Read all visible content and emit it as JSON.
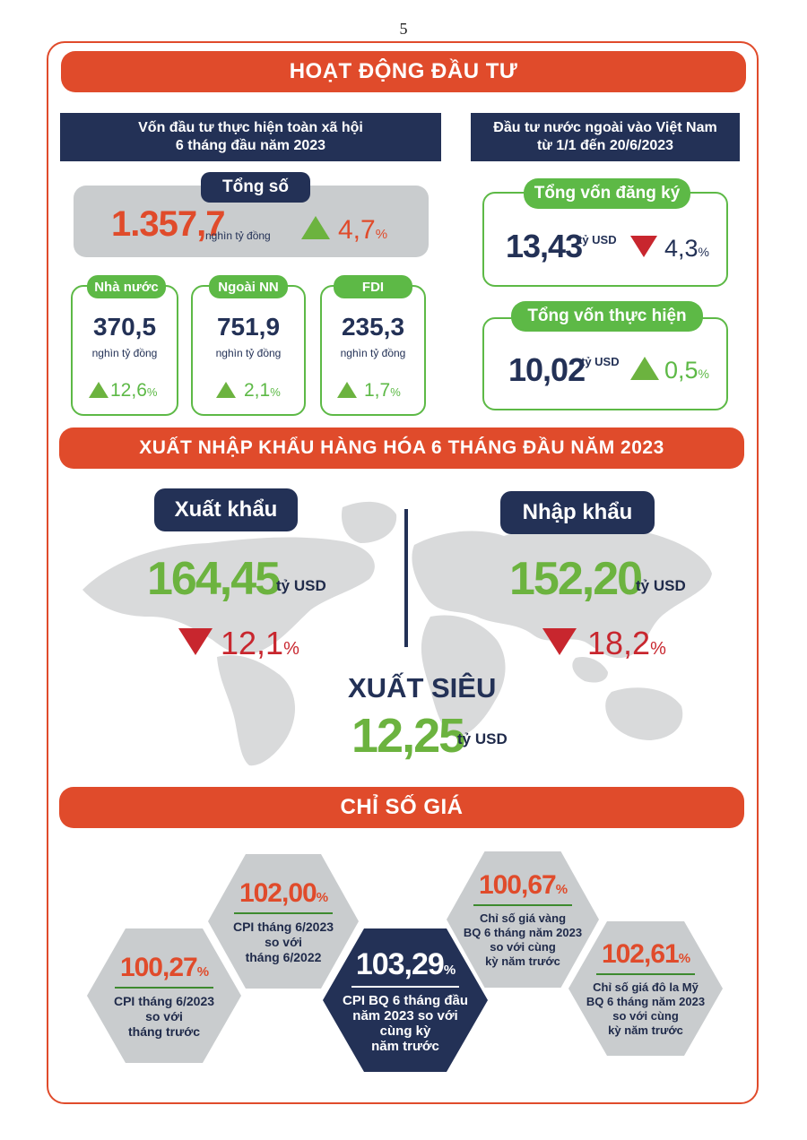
{
  "page_number": "5",
  "investment": {
    "banner": "HOẠT ĐỘNG ĐẦU TƯ",
    "social": {
      "header_line1": "Vốn đầu tư thực hiện toàn xã hội",
      "header_line2": "6 tháng đầu năm 2023",
      "total_label": "Tổng số",
      "total_value": "1.357,7",
      "total_unit": "nghìn tỷ đồng",
      "total_change": "4,7",
      "total_change_unit": "%",
      "total_trend": "up",
      "sectors": [
        {
          "label": "Nhà nước",
          "value": "370,5",
          "unit": "nghìn tỷ đồng",
          "change": "12,6",
          "change_unit": "%",
          "trend": "up"
        },
        {
          "label": "Ngoài NN",
          "value": "751,9",
          "unit": "nghìn tỷ đồng",
          "change": "2,1",
          "change_unit": "%",
          "trend": "up"
        },
        {
          "label": "FDI",
          "value": "235,3",
          "unit": "nghìn tỷ đồng",
          "change": "1,7",
          "change_unit": "%",
          "trend": "up"
        }
      ]
    },
    "fdi": {
      "header_line1": "Đầu tư nước ngoài vào Việt Nam",
      "header_line2": "từ 1/1 đến 20/6/2023",
      "registered": {
        "label": "Tổng vốn đăng ký",
        "value": "13,43",
        "unit": "tỷ USD",
        "change": "4,3",
        "change_unit": "%",
        "trend": "down"
      },
      "realized": {
        "label": "Tổng vốn thực hiện",
        "value": "10,02",
        "unit": "tỷ USD",
        "change": "0,5",
        "change_unit": "%",
        "trend": "up"
      }
    }
  },
  "trade": {
    "banner": "XUẤT NHẬP KHẨU HÀNG HÓA 6 THÁNG ĐẦU NĂM 2023",
    "export": {
      "label": "Xuất khẩu",
      "value": "164,45",
      "unit": "tỷ USD",
      "change": "12,1",
      "change_unit": "%",
      "trend": "down"
    },
    "import": {
      "label": "Nhập khẩu",
      "value": "152,20",
      "unit": "tỷ USD",
      "change": "18,2",
      "change_unit": "%",
      "trend": "down"
    },
    "surplus": {
      "label": "XUẤT SIÊU",
      "value": "12,25",
      "unit": "tỷ USD"
    }
  },
  "prices": {
    "banner": "CHỈ SỐ GIÁ",
    "items": [
      {
        "value": "100,27",
        "unit": "%",
        "line1": "CPI tháng 6/2023",
        "line2": "so với",
        "line3": "tháng trước",
        "line4": ""
      },
      {
        "value": "102,00",
        "unit": "%",
        "line1": "CPI tháng 6/2023",
        "line2": "so với",
        "line3": "tháng 6/2022",
        "line4": ""
      },
      {
        "value": "103,29",
        "unit": "%",
        "line1": "CPI BQ 6 tháng đầu",
        "line2": "năm 2023 so với",
        "line3": "cùng kỳ",
        "line4": "năm trước"
      },
      {
        "value": "100,67",
        "unit": "%",
        "line1": "Chỉ số giá vàng",
        "line2": "BQ 6 tháng năm 2023",
        "line3": "so với cùng",
        "line4": "kỳ năm trước"
      },
      {
        "value": "102,61",
        "unit": "%",
        "line1": "Chỉ số giá đô la Mỹ",
        "line2": "BQ 6 tháng năm 2023",
        "line3": "so với cùng",
        "line4": "kỳ năm trước"
      }
    ]
  },
  "colors": {
    "accent_orange": "#e04b2b",
    "navy": "#233156",
    "green": "#5db946",
    "red_down": "#c8262e",
    "hex_gray": "#c9ccce"
  }
}
